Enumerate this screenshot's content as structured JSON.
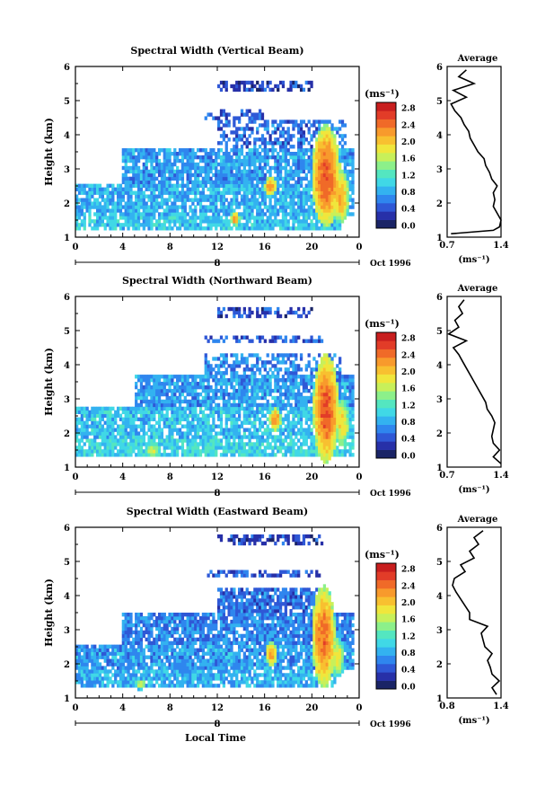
{
  "figure": {
    "time_axis_label": "Local Time"
  },
  "color_scale": {
    "unit": "(ms⁻¹)",
    "ticks": [
      "0.0",
      "0.4",
      "0.8",
      "1.2",
      "1.6",
      "2.0",
      "2.4",
      "2.8"
    ],
    "colors": [
      "#1a2466",
      "#2730a8",
      "#2f58d6",
      "#2f86ee",
      "#33b2f0",
      "#40d8e6",
      "#54e6c0",
      "#8cf08a",
      "#c8f05a",
      "#f0e63c",
      "#f8c030",
      "#f89a2c",
      "#f06a28",
      "#e23c28",
      "#c81e1e"
    ]
  },
  "chart_data": [
    {
      "type": "heatmap",
      "title": "Spectral Width (Vertical Beam)",
      "ylabel": "Height (km)",
      "xlabel": "",
      "x_ticks": [
        "0",
        "4",
        "8",
        "12",
        "16",
        "20",
        "0"
      ],
      "y_ticks": [
        "1",
        "2",
        "3",
        "4",
        "5",
        "6"
      ],
      "xlim": [
        0,
        24
      ],
      "ylim": [
        1,
        6
      ],
      "date_label": "8",
      "date_suffix": "Oct 1996",
      "value_range": [
        0.0,
        3.0
      ],
      "bands": [
        {
          "h0": 1.2,
          "h1": 1.6,
          "t0": 0,
          "t1": 22.5,
          "v": 1.0
        },
        {
          "h0": 1.6,
          "h1": 2.6,
          "t0": 0,
          "t1": 23.5,
          "v": 0.9
        },
        {
          "h0": 2.6,
          "h1": 3.6,
          "t0": 4,
          "t1": 23.5,
          "v": 0.8
        },
        {
          "h0": 3.6,
          "h1": 4.4,
          "t0": 12,
          "t1": 23,
          "v": 0.6
        },
        {
          "h0": 4.4,
          "h1": 4.8,
          "t0": 11,
          "t1": 16,
          "v": 0.5
        },
        {
          "h0": 5.3,
          "h1": 5.6,
          "t0": 12,
          "t1": 20,
          "v": 0.4
        }
      ],
      "hotspots": [
        {
          "t": 21.2,
          "h": 2.8,
          "w": 1.2,
          "dh": 1.5,
          "v": 2.6
        },
        {
          "t": 22.4,
          "h": 2.2,
          "w": 0.8,
          "dh": 0.8,
          "v": 2.2
        },
        {
          "t": 16.5,
          "h": 2.5,
          "w": 0.5,
          "dh": 0.3,
          "v": 2.4
        },
        {
          "t": 13.5,
          "h": 1.55,
          "w": 0.4,
          "dh": 0.2,
          "v": 2.3
        }
      ],
      "avg_profile": {
        "title": "Average",
        "xlabel": "(ms⁻¹)",
        "x_ticks": [
          "0.7",
          "1.4"
        ],
        "xlim": [
          0.7,
          1.4
        ],
        "y_ticks": [
          "1",
          "2",
          "3",
          "4",
          "5",
          "6"
        ],
        "ylim": [
          1,
          6
        ],
        "heights": [
          1.1,
          1.2,
          1.3,
          1.5,
          1.7,
          1.9,
          2.1,
          2.3,
          2.5,
          2.7,
          2.9,
          3.1,
          3.3,
          3.5,
          3.7,
          3.9,
          4.1,
          4.3,
          4.5,
          4.7,
          4.9,
          5.1,
          5.3,
          5.5,
          5.7,
          5.9
        ],
        "values": [
          0.75,
          1.3,
          1.38,
          1.4,
          1.35,
          1.3,
          1.32,
          1.3,
          1.35,
          1.28,
          1.25,
          1.2,
          1.18,
          1.1,
          1.05,
          1.0,
          0.98,
          0.92,
          0.88,
          0.8,
          0.75,
          0.95,
          0.78,
          1.05,
          0.85,
          0.95
        ]
      }
    },
    {
      "type": "heatmap",
      "title": "Spectral Width (Northward Beam)",
      "ylabel": "Height (km)",
      "xlabel": "",
      "x_ticks": [
        "0",
        "4",
        "8",
        "12",
        "16",
        "20",
        "0"
      ],
      "y_ticks": [
        "1",
        "2",
        "3",
        "4",
        "5",
        "6"
      ],
      "xlim": [
        0,
        24
      ],
      "ylim": [
        1,
        6
      ],
      "date_label": "8",
      "date_suffix": "Oct 1996",
      "value_range": [
        0.0,
        3.0
      ],
      "bands": [
        {
          "h0": 1.3,
          "h1": 1.8,
          "t0": 0,
          "t1": 23.5,
          "v": 1.1
        },
        {
          "h0": 1.8,
          "h1": 2.8,
          "t0": 0,
          "t1": 23.5,
          "v": 1.0
        },
        {
          "h0": 2.8,
          "h1": 3.7,
          "t0": 5,
          "t1": 23.5,
          "v": 0.8
        },
        {
          "h0": 3.7,
          "h1": 4.3,
          "t0": 11,
          "t1": 22.5,
          "v": 0.7
        },
        {
          "h0": 4.6,
          "h1": 4.9,
          "t0": 11,
          "t1": 21,
          "v": 0.5
        },
        {
          "h0": 5.4,
          "h1": 5.7,
          "t0": 12,
          "t1": 20,
          "v": 0.4
        }
      ],
      "hotspots": [
        {
          "t": 21.2,
          "h": 2.7,
          "w": 1.1,
          "dh": 1.6,
          "v": 2.6
        },
        {
          "t": 16.9,
          "h": 2.4,
          "w": 0.5,
          "dh": 0.35,
          "v": 2.4
        },
        {
          "t": 22.5,
          "h": 2.3,
          "w": 0.7,
          "dh": 0.7,
          "v": 2.0
        },
        {
          "t": 6.5,
          "h": 1.5,
          "w": 0.6,
          "dh": 0.2,
          "v": 1.8
        }
      ],
      "avg_profile": {
        "title": "Average",
        "xlabel": "(ms⁻¹)",
        "x_ticks": [
          "0.7",
          "1.4"
        ],
        "xlim": [
          0.7,
          1.4
        ],
        "y_ticks": [
          "1",
          "2",
          "3",
          "4",
          "5",
          "6"
        ],
        "ylim": [
          1,
          6
        ],
        "heights": [
          1.1,
          1.3,
          1.5,
          1.7,
          1.9,
          2.1,
          2.3,
          2.5,
          2.7,
          2.9,
          3.1,
          3.3,
          3.5,
          3.7,
          3.9,
          4.1,
          4.3,
          4.5,
          4.7,
          4.9,
          5.1,
          5.3,
          5.5,
          5.7,
          5.9
        ],
        "values": [
          1.4,
          1.3,
          1.38,
          1.3,
          1.28,
          1.3,
          1.32,
          1.28,
          1.22,
          1.2,
          1.15,
          1.1,
          1.05,
          1.0,
          0.95,
          0.9,
          0.85,
          0.78,
          0.95,
          0.72,
          0.85,
          0.8,
          0.9,
          0.85,
          0.92
        ]
      }
    },
    {
      "type": "heatmap",
      "title": "Spectral Width (Eastward Beam)",
      "ylabel": "Height (km)",
      "xlabel": "Local Time",
      "x_ticks": [
        "0",
        "4",
        "8",
        "12",
        "16",
        "20",
        "0"
      ],
      "y_ticks": [
        "1",
        "2",
        "3",
        "4",
        "5",
        "6"
      ],
      "xlim": [
        0,
        24
      ],
      "ylim": [
        1,
        6
      ],
      "date_label": "8",
      "date_suffix": "Oct 1996",
      "value_range": [
        0.0,
        3.0
      ],
      "bands": [
        {
          "h0": 1.3,
          "h1": 1.8,
          "t0": 0,
          "t1": 22,
          "v": 0.9
        },
        {
          "h0": 1.8,
          "h1": 2.6,
          "t0": 0,
          "t1": 23.5,
          "v": 0.8
        },
        {
          "h0": 2.6,
          "h1": 3.5,
          "t0": 4,
          "t1": 23.5,
          "v": 0.7
        },
        {
          "h0": 3.5,
          "h1": 4.2,
          "t0": 12,
          "t1": 21,
          "v": 0.6
        },
        {
          "h0": 4.5,
          "h1": 4.8,
          "t0": 11,
          "t1": 21,
          "v": 0.5
        },
        {
          "h0": 5.5,
          "h1": 5.8,
          "t0": 12,
          "t1": 21,
          "v": 0.4
        }
      ],
      "hotspots": [
        {
          "t": 21.0,
          "h": 2.8,
          "w": 1.0,
          "dh": 1.5,
          "v": 2.5
        },
        {
          "t": 16.6,
          "h": 2.3,
          "w": 0.5,
          "dh": 0.35,
          "v": 2.3
        },
        {
          "t": 22.2,
          "h": 2.2,
          "w": 0.6,
          "dh": 0.6,
          "v": 1.9
        },
        {
          "t": 5.5,
          "h": 1.4,
          "w": 0.5,
          "dh": 0.15,
          "v": 1.7
        }
      ],
      "avg_profile": {
        "title": "Average",
        "xlabel": "(ms⁻¹)",
        "x_ticks": [
          "0.8",
          "1.4"
        ],
        "xlim": [
          0.8,
          1.4
        ],
        "y_ticks": [
          "1",
          "2",
          "3",
          "4",
          "5",
          "6"
        ],
        "ylim": [
          1,
          6
        ],
        "heights": [
          1.1,
          1.3,
          1.5,
          1.7,
          1.9,
          2.1,
          2.3,
          2.5,
          2.7,
          2.9,
          3.1,
          3.3,
          3.5,
          3.7,
          3.9,
          4.1,
          4.3,
          4.5,
          4.7,
          4.9,
          5.1,
          5.3,
          5.5,
          5.7,
          5.9
        ],
        "values": [
          1.35,
          1.3,
          1.38,
          1.3,
          1.28,
          1.25,
          1.3,
          1.22,
          1.2,
          1.18,
          1.25,
          1.05,
          1.05,
          1.0,
          0.95,
          0.9,
          0.86,
          0.88,
          1.0,
          0.95,
          1.1,
          1.05,
          1.15,
          1.1,
          1.2
        ]
      }
    }
  ]
}
